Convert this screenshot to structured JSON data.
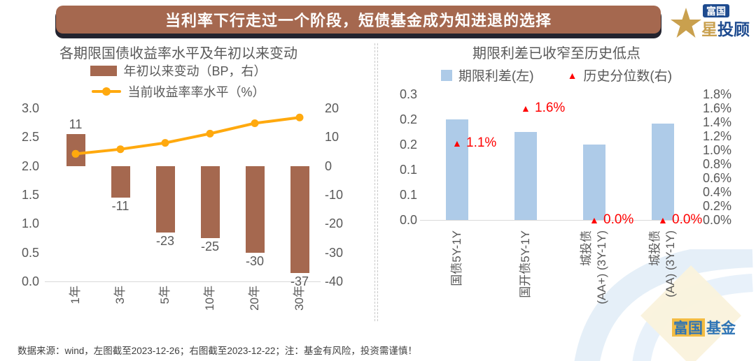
{
  "header": {
    "title": "当利率下行走过一个阶段，短债基金成为知进退的选择"
  },
  "logo": {
    "brand_box": "富国",
    "brand_star": "星",
    "brand_rest": "投顾"
  },
  "watermark": {
    "text_highlight": "富国",
    "text_rest": "基金"
  },
  "footer": {
    "note": "数据来源：wind，左图截至2023-12-26；右图截至2023-12-22；注：基金有风险，投资需谨慎！"
  },
  "colors": {
    "banner": "#A5684F",
    "bar_brown": "#A5684F",
    "line_orange": "#FFA90E",
    "bar_blue": "#AECBE8",
    "marker_red": "#FF0000",
    "text_gray": "#595959",
    "logo_blue": "#1E4B8F",
    "logo_gold": "#C9A04E"
  },
  "chart_data": [
    {
      "type": "bar",
      "title": "各期限国债收益率水平及年初以来变动",
      "categories": [
        "1年",
        "3年",
        "5年",
        "10年",
        "20年",
        "30年"
      ],
      "series": [
        {
          "name": "年初以来变动（BP，右）",
          "kind": "bar",
          "axis": "right",
          "values": [
            11,
            -11,
            -23,
            -25,
            -30,
            -37
          ],
          "labels": [
            "11",
            "-11",
            "-23",
            "-25",
            "-30",
            "-37"
          ]
        },
        {
          "name": "当前收益率率水平（%）",
          "kind": "line",
          "axis": "left",
          "values": [
            2.21,
            2.29,
            2.4,
            2.56,
            2.74,
            2.84
          ]
        }
      ],
      "left_axis": {
        "min": 0,
        "max": 3,
        "ticks": [
          "3.0",
          "2.5",
          "2.0",
          "1.5",
          "1.0",
          "0.5",
          "0.0"
        ]
      },
      "right_axis": {
        "min": -40,
        "max": 20,
        "ticks": [
          "20",
          "10",
          "0",
          "-10",
          "-20",
          "-30",
          "-40"
        ]
      },
      "legend_position": "top",
      "grid": false
    },
    {
      "type": "bar",
      "title": "期限利差已收窄至历史低点",
      "categories": [
        "国债5Y-1Y",
        "国开债5Y-1Y",
        "城投债(AA+)(3Y-1Y)",
        "城投债(AA)(3Y-1Y)"
      ],
      "category_lines": [
        [
          "国债5Y-1Y"
        ],
        [
          "国开债5Y-1Y"
        ],
        [
          "城投债",
          "(AA+) (3Y-1Y)"
        ],
        [
          "城投债",
          "(AA) (3Y-1Y)"
        ]
      ],
      "series": [
        {
          "name": "期限利差(左)",
          "kind": "bar",
          "axis": "left",
          "values": [
            0.24,
            0.21,
            0.18,
            0.23
          ]
        },
        {
          "name": "历史分位数(右)",
          "kind": "point",
          "axis": "right",
          "values": [
            1.1,
            1.6,
            0.0,
            0.0
          ],
          "labels": [
            "1.1%",
            "1.6%",
            "0.0%",
            "0.0%"
          ]
        }
      ],
      "left_axis": {
        "min": 0,
        "max": 0.3,
        "ticks": [
          "0.3",
          "0.2",
          "0.2",
          "0.1",
          "0.1",
          "0.0"
        ]
      },
      "right_axis": {
        "min": 0,
        "max": 1.8,
        "ticks": [
          "1.8%",
          "1.6%",
          "1.4%",
          "1.2%",
          "1.0%",
          "0.8%",
          "0.6%",
          "0.4%",
          "0.2%",
          "0.0%"
        ]
      },
      "legend_position": "top",
      "grid": false
    }
  ]
}
